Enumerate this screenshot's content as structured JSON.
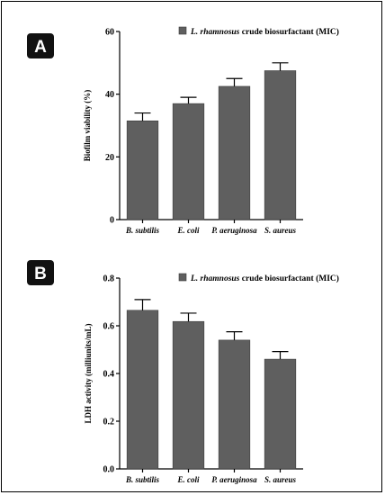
{
  "colors": {
    "bar": "#5f5f5f",
    "badge": "#111111"
  },
  "chart_data": [
    {
      "type": "bar",
      "panel_label": "A",
      "categories": [
        "B. subtilis",
        "E. coli",
        "P. aeruginosa",
        "S. aureus"
      ],
      "values": [
        31.5,
        37.0,
        42.5,
        47.5
      ],
      "errors": [
        2.5,
        2.0,
        2.5,
        2.5
      ],
      "ylabel": "Biofilm viability (%)",
      "ylim": [
        0,
        60
      ],
      "yticks": [
        0,
        20,
        40,
        60
      ],
      "ytick_labels": [
        "0",
        "20",
        "40",
        "60"
      ],
      "legend": {
        "species": "L. rhamnosus",
        "rest": " crude biosurfactant (MIC)"
      }
    },
    {
      "type": "bar",
      "panel_label": "B",
      "categories": [
        "B. subtilis",
        "E. coli",
        "P. aeruginosa",
        "S. aureus"
      ],
      "values": [
        0.665,
        0.618,
        0.54,
        0.46
      ],
      "errors": [
        0.045,
        0.035,
        0.035,
        0.032
      ],
      "ylabel": "LDH activity (milliunits/mL)",
      "ylim": [
        0,
        0.8
      ],
      "yticks": [
        0,
        0.2,
        0.4,
        0.6,
        0.8
      ],
      "ytick_labels": [
        "0.0",
        "0.2",
        "0.4",
        "0.6",
        "0.8"
      ],
      "legend": {
        "species": "L. rhamnosus",
        "rest": " crude biosurfactant (MIC)"
      }
    }
  ]
}
